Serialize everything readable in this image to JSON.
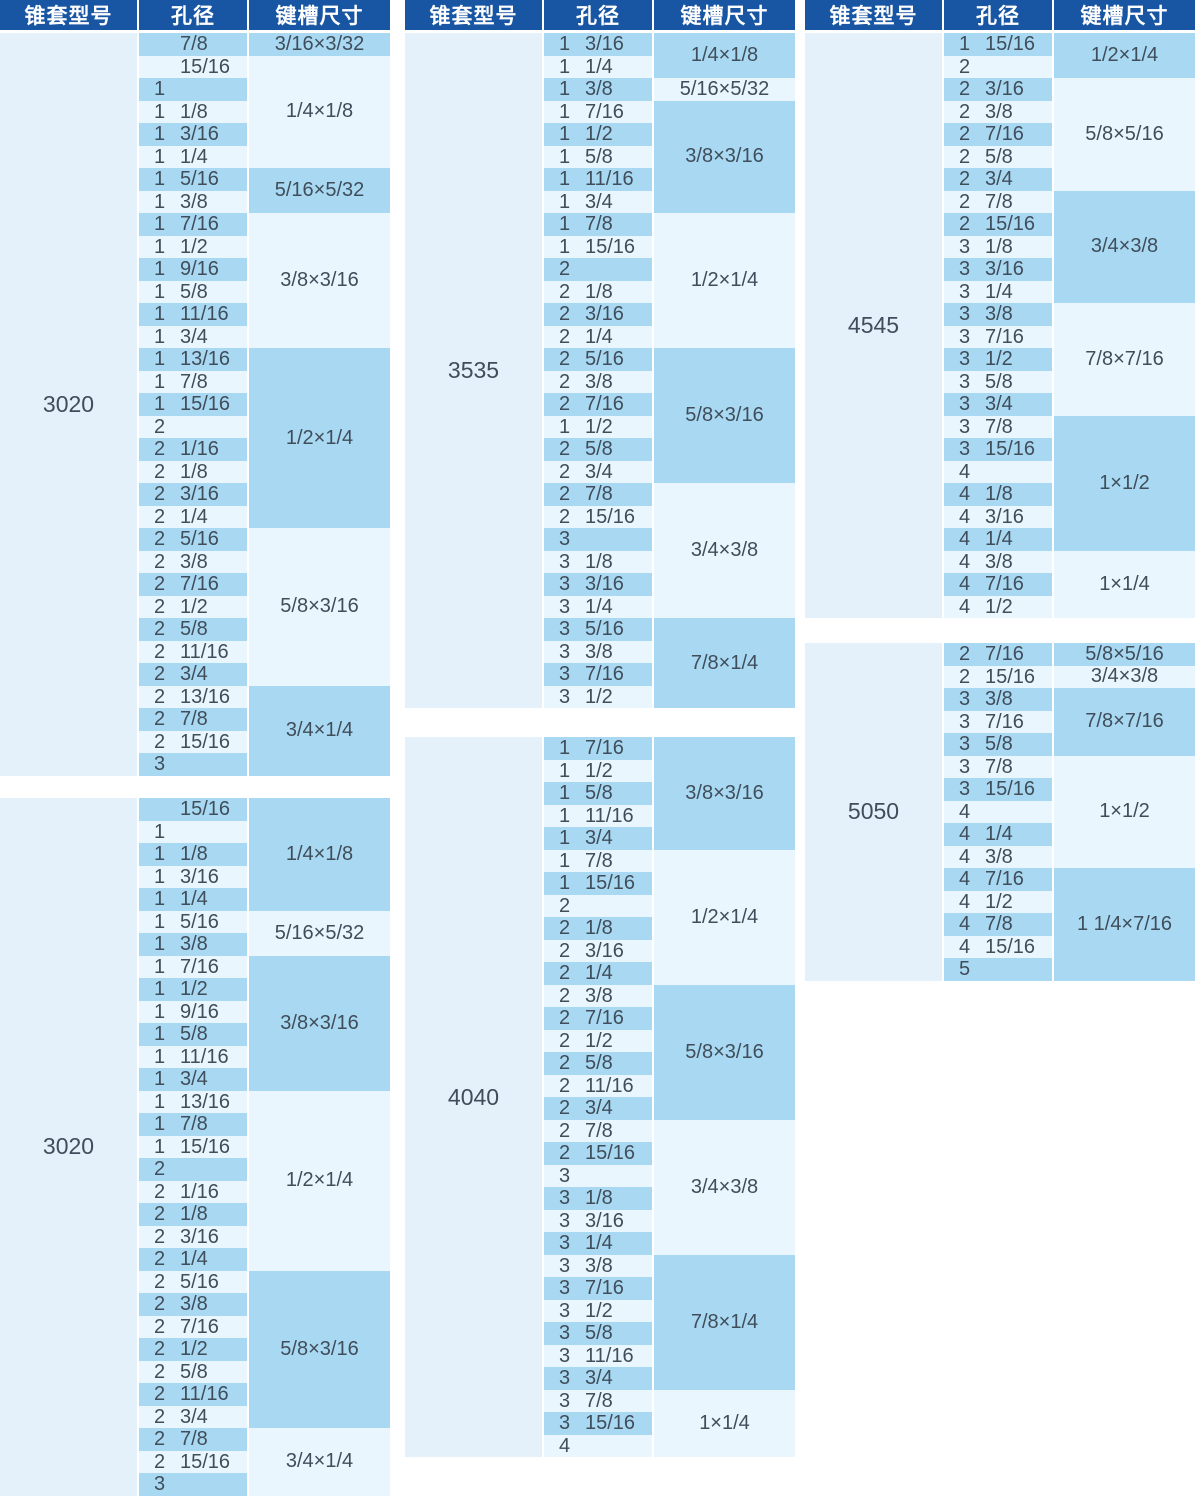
{
  "columns_header": {
    "model": "锥套型号",
    "bore": "孔径",
    "keyway": "键槽尺寸"
  },
  "colors": {
    "header_bg": "#1855a3",
    "header_text": "#ffffff",
    "row_shaded": "#a9d9f2",
    "row_light": "#eaf6fd",
    "model_bg": "#e4f0fa",
    "text": "#404d5a",
    "page_bg": "#ffffff"
  },
  "tables": [
    {
      "model": "3020",
      "groups": [
        {
          "keyway": "3/16×3/32",
          "bores": [
            "7/8"
          ]
        },
        {
          "keyway": "1/4×1/8",
          "bores": [
            "15/16",
            "1",
            "1 1/8",
            "1 3/16",
            "1 1/4"
          ]
        },
        {
          "keyway": "5/16×5/32",
          "bores": [
            "1 5/16",
            "1 3/8"
          ]
        },
        {
          "keyway": "3/8×3/16",
          "bores": [
            "1 7/16",
            "1 1/2",
            "1 9/16",
            "1 5/8",
            "1 11/16",
            "1 3/4"
          ]
        },
        {
          "keyway": "1/2×1/4",
          "bores": [
            "1 13/16",
            "1 7/8",
            "1 15/16",
            "2",
            "2 1/16",
            "2 1/8",
            "2 3/16",
            "2 1/4"
          ]
        },
        {
          "keyway": "5/8×3/16",
          "bores": [
            "2 5/16",
            "2 3/8",
            "2 7/16",
            "2 1/2",
            "2 5/8",
            "2 11/16",
            "2 3/4"
          ]
        },
        {
          "keyway": "3/4×1/4",
          "bores": [
            "2 13/16",
            "2 7/8",
            "2 15/16",
            "3"
          ]
        }
      ]
    },
    {
      "model": "3020",
      "groups": [
        {
          "keyway": "1/4×1/8",
          "bores": [
            "15/16",
            "1",
            "1 1/8",
            "1 3/16",
            "1 1/4"
          ]
        },
        {
          "keyway": "5/16×5/32",
          "bores": [
            "1 5/16",
            "1 3/8"
          ]
        },
        {
          "keyway": "3/8×3/16",
          "bores": [
            "1 7/16",
            "1 1/2",
            "1 9/16",
            "1 5/8",
            "1 11/16",
            "1 3/4"
          ]
        },
        {
          "keyway": "1/2×1/4",
          "bores": [
            "1 13/16",
            "1 7/8",
            "1 15/16",
            "2",
            "2 1/16",
            "2 1/8",
            "2 3/16",
            "2 1/4"
          ]
        },
        {
          "keyway": "5/8×3/16",
          "bores": [
            "2 5/16",
            "2 3/8",
            "2 7/16",
            "2 1/2",
            "2 5/8",
            "2 11/16",
            "2 3/4"
          ]
        },
        {
          "keyway": "3/4×1/4",
          "bores": [
            "2 7/8",
            "2 15/16",
            "3"
          ]
        }
      ]
    },
    {
      "model": "3535",
      "groups": [
        {
          "keyway": "1/4×1/8",
          "bores": [
            "1 3/16",
            "1 1/4"
          ]
        },
        {
          "keyway": "5/16×5/32",
          "bores": [
            "1 3/8"
          ]
        },
        {
          "keyway": "3/8×3/16",
          "bores": [
            "1 7/16",
            "1 1/2",
            "1 5/8",
            "1 11/16",
            "1 3/4"
          ]
        },
        {
          "keyway": "1/2×1/4",
          "bores": [
            "1 7/8",
            "1 15/16",
            "2",
            "2 1/8",
            "2 3/16",
            "2 1/4"
          ]
        },
        {
          "keyway": "5/8×3/16",
          "bores": [
            "2 5/16",
            "2 3/8",
            "2 7/16",
            "1 1/2",
            "2 5/8",
            "2 3/4"
          ]
        },
        {
          "keyway": "3/4×3/8",
          "bores": [
            "2 7/8",
            "2 15/16",
            "3",
            "3 1/8",
            "3 3/16",
            "3 1/4"
          ]
        },
        {
          "keyway": "7/8×1/4",
          "bores": [
            "3 5/16",
            "3 3/8",
            "3 7/16",
            "3 1/2"
          ]
        }
      ]
    },
    {
      "model": "4040",
      "groups": [
        {
          "keyway": "3/8×3/16",
          "bores": [
            "1 7/16",
            "1 1/2",
            "1 5/8",
            "1 11/16",
            "1 3/4"
          ]
        },
        {
          "keyway": "1/2×1/4",
          "bores": [
            "1 7/8",
            "1 15/16",
            "2",
            "2 1/8",
            "2 3/16",
            "2 1/4"
          ]
        },
        {
          "keyway": "5/8×3/16",
          "bores": [
            "2 3/8",
            "2 7/16",
            "2 1/2",
            "2 5/8",
            "2 11/16",
            "2 3/4"
          ]
        },
        {
          "keyway": "3/4×3/8",
          "bores": [
            "2 7/8",
            "2 15/16",
            "3",
            "3 1/8",
            "3 3/16",
            "3 1/4"
          ]
        },
        {
          "keyway": "7/8×1/4",
          "bores": [
            "3 3/8",
            "3 7/16",
            "3 1/2",
            "3 5/8",
            "3 11/16",
            "3 3/4"
          ]
        },
        {
          "keyway": "1×1/4",
          "bores": [
            "3 7/8",
            "3 15/16",
            "4"
          ]
        }
      ]
    },
    {
      "model": "4545",
      "groups": [
        {
          "keyway": "1/2×1/4",
          "bores": [
            "1 15/16",
            "2"
          ]
        },
        {
          "keyway": "5/8×5/16",
          "bores": [
            "2 3/16",
            "2 3/8",
            "2 7/16",
            "2 5/8",
            "2 3/4"
          ]
        },
        {
          "keyway": "3/4×3/8",
          "bores": [
            "2 7/8",
            "2 15/16",
            "3 1/8",
            "3 3/16",
            "3 1/4"
          ]
        },
        {
          "keyway": "7/8×7/16",
          "bores": [
            "3 3/8",
            "3 7/16",
            "3 1/2",
            "3 5/8",
            "3 3/4"
          ]
        },
        {
          "keyway": "1×1/2",
          "bores": [
            "3 7/8",
            "3 15/16",
            "4",
            "4 1/8",
            "4 3/16",
            "4 1/4"
          ]
        },
        {
          "keyway": "1×1/4",
          "bores": [
            "4 3/8",
            "4 7/16",
            "4 1/2"
          ]
        }
      ]
    },
    {
      "model": "5050",
      "groups": [
        {
          "keyway": "5/8×5/16",
          "bores": [
            "2 7/16"
          ]
        },
        {
          "keyway": "3/4×3/8",
          "bores": [
            "2 15/16"
          ]
        },
        {
          "keyway": "7/8×7/16",
          "bores": [
            "3 3/8",
            "3 7/16",
            "3 5/8"
          ]
        },
        {
          "keyway": "1×1/2",
          "bores": [
            "3 7/8",
            "3 15/16",
            "4",
            "4 1/4",
            "4 3/8"
          ]
        },
        {
          "keyway": "1 1/4×7/16",
          "bores": [
            "4 7/16",
            "4 1/2",
            "4 7/8",
            "4 15/16",
            "5"
          ]
        }
      ]
    }
  ]
}
